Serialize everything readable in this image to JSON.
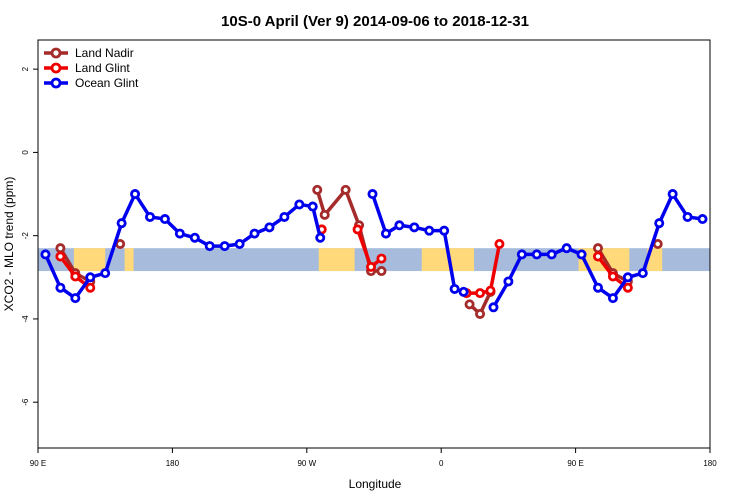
{
  "chart_data": {
    "type": "line",
    "title": "10S-0 April (Ver 9)   2014-09-06 to 2018-12-31",
    "xlabel": "Longitude",
    "ylabel": "XCO2 - MLO trend (ppm)",
    "xlim": [
      90,
      540
    ],
    "ylim": [
      -7.1,
      2.7
    ],
    "x_ticks": [
      {
        "value": 90,
        "label": "90 E"
      },
      {
        "value": 180,
        "label": "180"
      },
      {
        "value": 270,
        "label": "90 W"
      },
      {
        "value": 360,
        "label": "0"
      },
      {
        "value": 450,
        "label": "90 E"
      },
      {
        "value": 540,
        "label": "180"
      }
    ],
    "y_ticks": [
      {
        "value": 2,
        "label": "2"
      },
      {
        "value": 0,
        "label": "0"
      },
      {
        "value": -2,
        "label": "-2"
      },
      {
        "value": -4,
        "label": "-4"
      },
      {
        "value": -6,
        "label": "-6"
      }
    ],
    "grid": false,
    "legend_position": "top-left",
    "band": {
      "y_min": -2.85,
      "y_max": -2.3,
      "color": "#a7bcdc",
      "land_color": "#ffd97a"
    },
    "land_segments": [
      [
        114,
        135
      ],
      [
        148,
        154
      ],
      [
        278,
        302
      ],
      [
        347,
        382
      ],
      [
        452,
        486
      ],
      [
        498,
        508
      ]
    ],
    "series": [
      {
        "name": "Land Nadir",
        "color": "#a52a2a",
        "segments": [
          [
            [
              105,
              -2.3
            ],
            [
              115,
              -2.9
            ],
            [
              125,
              -3.1
            ]
          ],
          [
            [
              145,
              -2.2
            ]
          ],
          [
            [
              277,
              -0.9
            ],
            [
              282,
              -1.5
            ],
            [
              296,
              -0.9
            ],
            [
              305,
              -1.75
            ],
            [
              313,
              -2.85
            ],
            [
              320,
              -2.85
            ]
          ],
          [
            [
              379,
              -3.65
            ],
            [
              386,
              -3.88
            ],
            [
              393,
              -3.35
            ]
          ],
          [
            [
              465,
              -2.3
            ],
            [
              475,
              -2.9
            ],
            [
              485,
              -3.1
            ]
          ],
          [
            [
              505,
              -2.2
            ]
          ]
        ]
      },
      {
        "name": "Land Glint",
        "color": "#ee0000",
        "segments": [
          [
            [
              105,
              -2.5
            ],
            [
              115,
              -2.98
            ],
            [
              125,
              -3.25
            ]
          ],
          [
            [
              280,
              -1.85
            ]
          ],
          [
            [
              304,
              -1.85
            ],
            [
              313,
              -2.75
            ],
            [
              320,
              -2.55
            ]
          ],
          [
            [
              377,
              -3.38
            ],
            [
              386,
              -3.38
            ],
            [
              393,
              -3.32
            ],
            [
              399,
              -2.2
            ]
          ],
          [
            [
              465,
              -2.5
            ],
            [
              475,
              -2.98
            ],
            [
              485,
              -3.25
            ]
          ]
        ]
      },
      {
        "name": "Ocean Glint",
        "color": "#0000ee",
        "segments": [
          [
            [
              95,
              -2.45
            ],
            [
              105,
              -3.25
            ],
            [
              115,
              -3.5
            ],
            [
              125,
              -3.0
            ],
            [
              135,
              -2.9
            ],
            [
              146,
              -1.7
            ],
            [
              155,
              -1.0
            ],
            [
              165,
              -1.55
            ],
            [
              175,
              -1.6
            ],
            [
              185,
              -1.95
            ],
            [
              195,
              -2.05
            ],
            [
              205,
              -2.25
            ],
            [
              215,
              -2.25
            ],
            [
              225,
              -2.2
            ],
            [
              235,
              -1.95
            ],
            [
              245,
              -1.8
            ],
            [
              255,
              -1.55
            ],
            [
              265,
              -1.25
            ],
            [
              274,
              -1.3
            ],
            [
              279,
              -2.05
            ]
          ],
          [
            [
              314,
              -1.0
            ],
            [
              323,
              -1.95
            ],
            [
              332,
              -1.75
            ],
            [
              342,
              -1.8
            ],
            [
              352,
              -1.88
            ],
            [
              362,
              -1.88
            ],
            [
              369,
              -3.28
            ],
            [
              375,
              -3.35
            ]
          ],
          [
            [
              395,
              -3.72
            ],
            [
              405,
              -3.1
            ],
            [
              414,
              -2.45
            ],
            [
              424,
              -2.45
            ],
            [
              434,
              -2.45
            ],
            [
              444,
              -2.3
            ],
            [
              454,
              -2.45
            ],
            [
              465,
              -3.25
            ],
            [
              475,
              -3.5
            ],
            [
              485,
              -3.0
            ],
            [
              495,
              -2.9
            ],
            [
              506,
              -1.7
            ],
            [
              515,
              -1.0
            ],
            [
              525,
              -1.55
            ],
            [
              535,
              -1.6
            ]
          ]
        ]
      }
    ]
  }
}
